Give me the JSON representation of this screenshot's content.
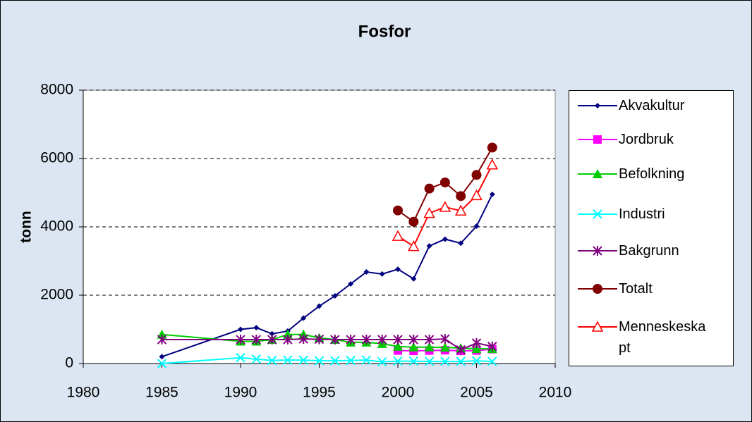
{
  "chart_data": {
    "type": "line",
    "title": "Fosfor",
    "y_label": "tonn",
    "x": [
      1985,
      1990,
      1991,
      1992,
      1993,
      1994,
      1995,
      1996,
      1997,
      1998,
      1999,
      2000,
      2001,
      2002,
      2003,
      2004,
      2005,
      2006
    ],
    "xlim": [
      1980,
      2010
    ],
    "xticks": [
      1980,
      1985,
      1990,
      1995,
      2000,
      2005,
      2010
    ],
    "ylim": [
      0,
      8000
    ],
    "yticks": [
      0,
      2000,
      4000,
      6000,
      8000
    ],
    "grid": true,
    "series": [
      {
        "name": "Akvakultur",
        "color": "#000080",
        "marker": "diamond",
        "values": [
          200,
          1000,
          1050,
          870,
          950,
          1330,
          1680,
          1980,
          2330,
          2680,
          2620,
          2760,
          2480,
          3440,
          3640,
          3520,
          4020,
          4950
        ]
      },
      {
        "name": "Jordbruk",
        "color": "#ff00ff",
        "marker": "square",
        "values": [
          null,
          null,
          null,
          null,
          null,
          null,
          null,
          null,
          null,
          null,
          null,
          380,
          370,
          380,
          390,
          370,
          380,
          420
        ]
      },
      {
        "name": "Befolkning",
        "color": "#00cc00",
        "marker": "triangle",
        "values": [
          850,
          650,
          650,
          700,
          850,
          850,
          750,
          700,
          620,
          620,
          580,
          500,
          480,
          480,
          470,
          450,
          430,
          430
        ]
      },
      {
        "name": "Industri",
        "color": "#00ffff",
        "marker": "x",
        "values": [
          0,
          170,
          130,
          90,
          100,
          100,
          80,
          80,
          90,
          100,
          50,
          70,
          70,
          60,
          60,
          60,
          80,
          60
        ]
      },
      {
        "name": "Bakgrunn",
        "color": "#800080",
        "marker": "star",
        "values": [
          700,
          700,
          700,
          700,
          700,
          720,
          710,
          700,
          700,
          700,
          700,
          700,
          700,
          700,
          720,
          400,
          600,
          500
        ]
      },
      {
        "name": "Totalt",
        "color": "#800000",
        "marker": "circle",
        "values": [
          null,
          null,
          null,
          null,
          null,
          null,
          null,
          null,
          null,
          null,
          null,
          4480,
          4150,
          5120,
          5300,
          4900,
          5520,
          6320
        ]
      },
      {
        "name": "Menneskeskapt",
        "color": "#ff0000",
        "marker": "hollow-triangle",
        "values": [
          null,
          null,
          null,
          null,
          null,
          null,
          null,
          null,
          null,
          null,
          null,
          3730,
          3430,
          4400,
          4580,
          4470,
          4920,
          5820
        ]
      }
    ]
  }
}
